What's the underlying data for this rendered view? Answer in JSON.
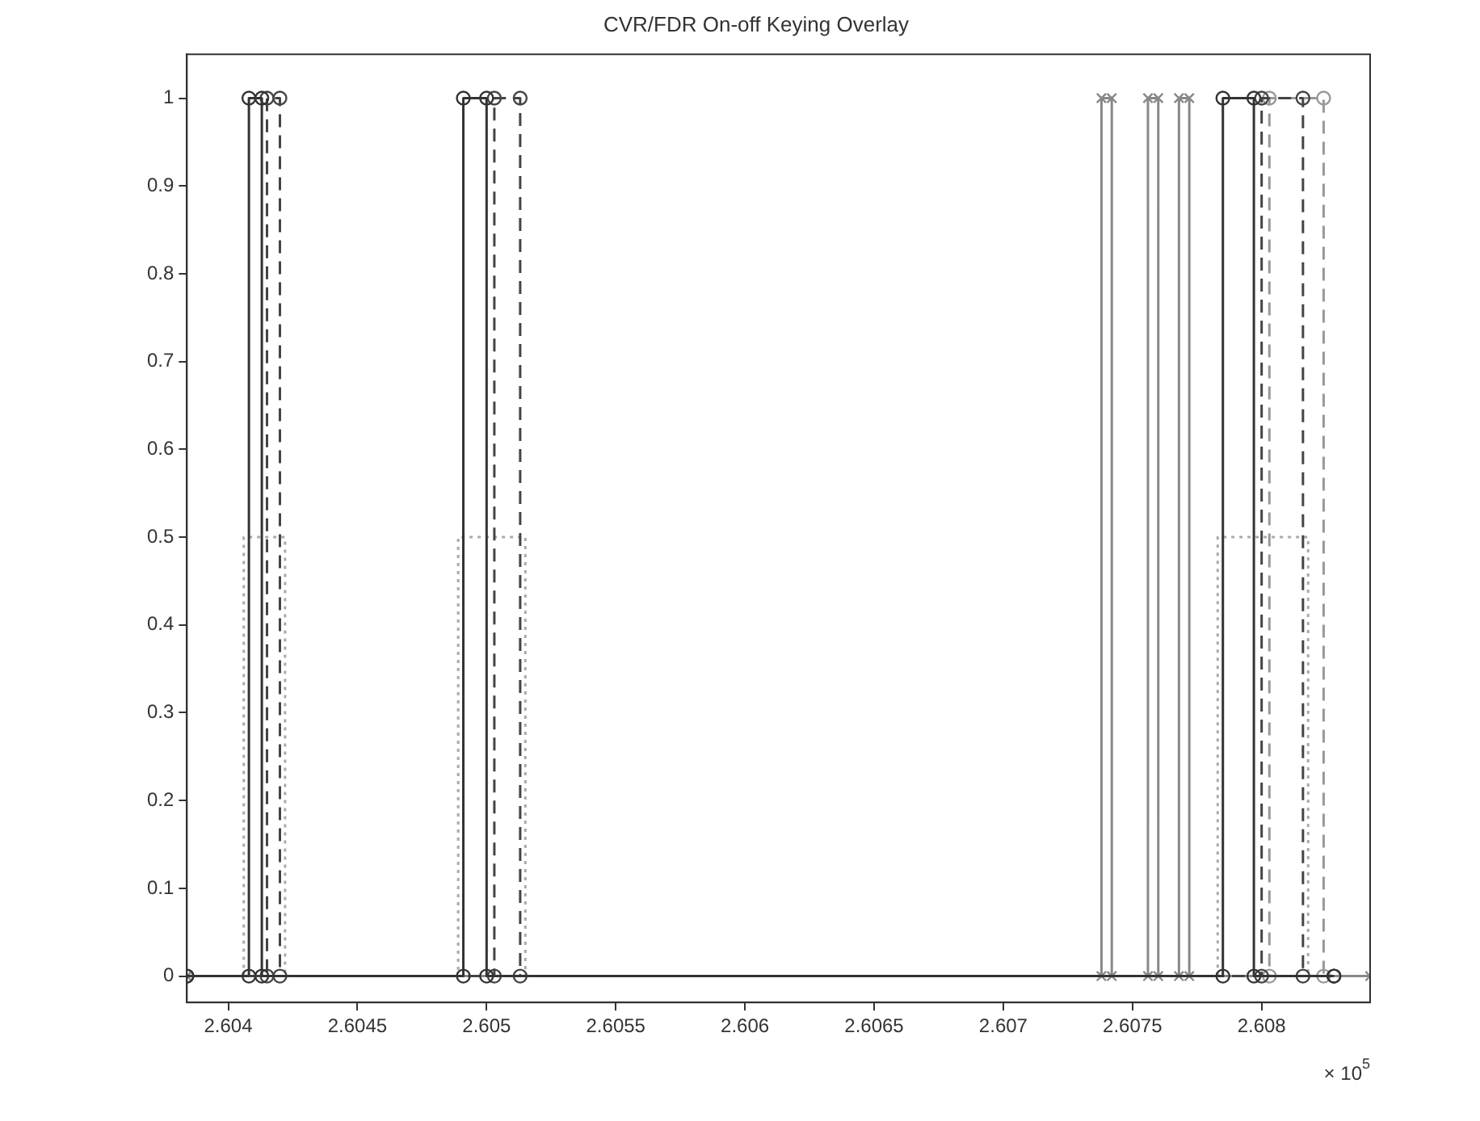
{
  "chart_data": {
    "type": "line",
    "title": "CVR/FDR On-off Keying Overlay",
    "annotations": [
      "× 10$^{5}$"
    ],
    "xlim": [
      2.60384,
      2.60842
    ],
    "xticks": [
      2.604,
      2.6045,
      2.605,
      2.6055,
      2.606,
      2.6065,
      2.607,
      2.6075,
      2.608
    ],
    "ylim": [
      -0.03,
      1.05
    ],
    "yticks": [
      0,
      0.1,
      0.2,
      0.3,
      0.4,
      0.5,
      0.6,
      0.7,
      0.8,
      0.9,
      1
    ],
    "grid": false,
    "legend": false,
    "series": [
      {
        "color": "#333333",
        "marker": "circle",
        "line_style": "solid",
        "x": [
          2.60384,
          2.60408,
          2.60408,
          2.60413,
          2.60413,
          2.60491,
          2.60491,
          2.605,
          2.605,
          2.60785,
          2.60785,
          2.60797,
          2.60797,
          2.60828
        ],
        "values": [
          0,
          0,
          1,
          1,
          0,
          0,
          1,
          1,
          0,
          0,
          1,
          1,
          0,
          0
        ]
      },
      {
        "color": "#444444",
        "marker": "circle",
        "line_style": "dashed",
        "x": [
          2.60384,
          2.60415,
          2.60415,
          2.6042,
          2.6042,
          2.60503,
          2.60503,
          2.60513,
          2.60513,
          2.608,
          2.608,
          2.60816,
          2.60816,
          2.60828
        ],
        "values": [
          0,
          0,
          1,
          1,
          0,
          0,
          1,
          1,
          0,
          0,
          1,
          1,
          0,
          0
        ]
      },
      {
        "color": "#888888",
        "marker": "cross",
        "line_style": "solid",
        "x": [
          2.60384,
          2.60738,
          2.60738,
          2.60742,
          2.60742,
          2.60756,
          2.60756,
          2.6076,
          2.6076,
          2.60768,
          2.60768,
          2.60772,
          2.60772,
          2.60842
        ],
        "values": [
          0,
          0,
          1,
          1,
          0,
          0,
          1,
          1,
          0,
          0,
          1,
          1,
          0,
          0
        ]
      },
      {
        "color": "#999999",
        "marker": "circle",
        "line_style": "dashed",
        "x": [
          2.60384,
          2.60803,
          2.60803,
          2.60824,
          2.60824,
          2.60828
        ],
        "values": [
          0,
          0,
          1,
          1,
          0,
          0
        ]
      },
      {
        "color": "#aaaaaa",
        "marker": "none",
        "line_style": "dotted",
        "x": [
          2.60406,
          2.60406,
          2.60422,
          2.60422,
          2.60489,
          2.60489,
          2.60515,
          2.60515,
          2.60783,
          2.60783,
          2.60818,
          2.60818
        ],
        "values": [
          0,
          0.5,
          0.5,
          0,
          0,
          0.5,
          0.5,
          0,
          0,
          0.5,
          0.5,
          0
        ]
      }
    ]
  }
}
